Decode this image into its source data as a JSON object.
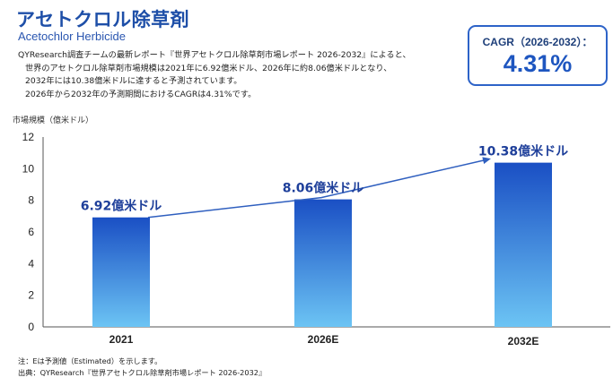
{
  "header": {
    "title": "アセトクロル除草剤",
    "subtitle": "Acetochlor Herbicide"
  },
  "description": [
    "QYResearch調査チームの最新レポート『世界アセトクロル除草剤市場レポート 2026-2032』によると、",
    "世界のアセトクロル除草剤市場規模は2021年に6.92億米ドル、2026年に約8.06億米ドルとなり、",
    "2032年には10.38億米ドルに達すると予測されています。",
    "2026年から2032年の予測期間におけるCAGRは4.31%です。"
  ],
  "cagr": {
    "label": "CAGR（2026-2032）：",
    "value": "4.31%"
  },
  "notes": {
    "note": "注：Eは予測値（Estimated）を示します。",
    "source": "出典：QYResearch『世界アセトクロル除草剤市場レポート 2026-2032』"
  },
  "chart_data": {
    "type": "bar",
    "categories": [
      "2021",
      "2026E",
      "2032E"
    ],
    "values": [
      6.92,
      8.06,
      10.38
    ],
    "data_labels": [
      "6.92億米ドル",
      "8.06億米ドル",
      "10.38億米ドル"
    ],
    "ylabel": "市場規模（億米ドル）",
    "ylim": [
      0,
      12
    ],
    "yticks": [
      "0",
      "2",
      "4",
      "6",
      "8",
      "10",
      "12"
    ],
    "grid": false,
    "trend_arrow": true,
    "colors": {
      "bar_top": "#1a4fc4",
      "bar_bottom": "#6cc4f4",
      "label": "#1e3f9a",
      "arrow": "#2f5fbf"
    }
  }
}
